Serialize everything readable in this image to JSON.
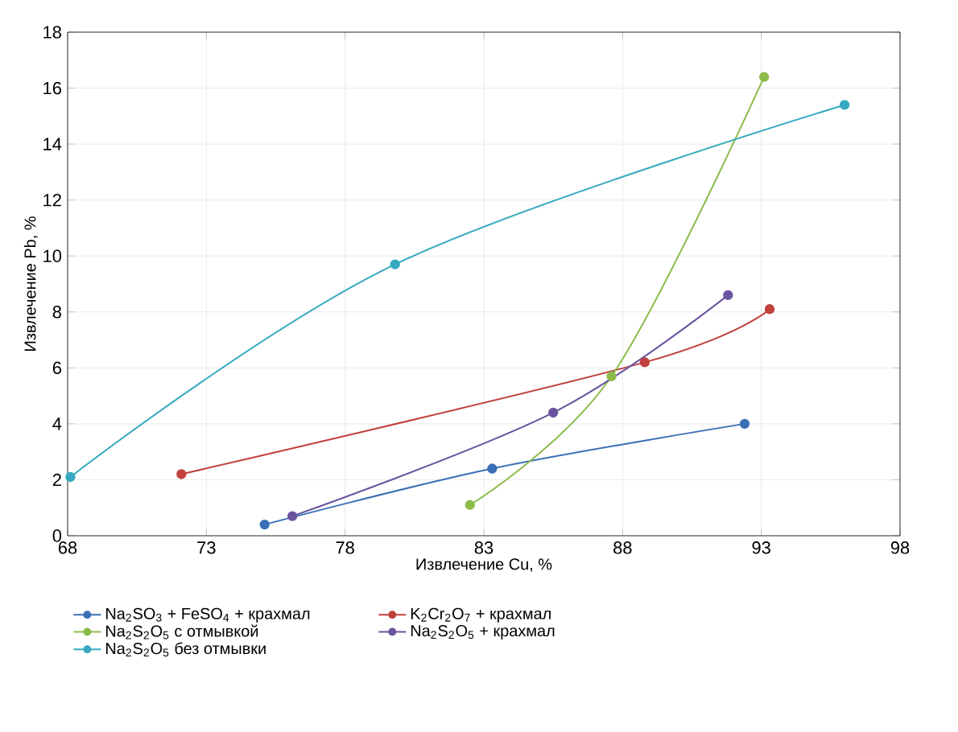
{
  "chart_data": {
    "type": "line",
    "xlabel": "Извлечение Cu, %",
    "ylabel": "Извлечение Pb, %",
    "xlim": [
      68,
      98
    ],
    "xticks": [
      68,
      73,
      78,
      83,
      88,
      93,
      98
    ],
    "ylim": [
      0,
      18
    ],
    "yticks": [
      0,
      2,
      4,
      6,
      8,
      10,
      12,
      14,
      16,
      18
    ],
    "grid": true,
    "legend": "bottom",
    "marker": "circle",
    "series": [
      {
        "name": "Na$_{2}$SO$_{3}$ + FeSO$_{4}$ + крахмал",
        "color": "#3a6fb5",
        "x": [
          75.1,
          83.3,
          92.4
        ],
        "values": [
          0.4,
          2.4,
          4.0
        ]
      },
      {
        "name": "K$_{2}$Cr$_{2}$O$_{7}$ + крахмал",
        "color": "#c0413e",
        "x": [
          72.1,
          88.8,
          93.3
        ],
        "values": [
          2.2,
          6.2,
          8.1
        ]
      },
      {
        "name": "Na$_{2}$S$_{2}$O$_{5}$ с отмывкой",
        "color": "#8cbb4a",
        "x": [
          82.5,
          87.6,
          93.1
        ],
        "values": [
          1.1,
          5.7,
          16.4
        ]
      },
      {
        "name": "Na$_{2}$S$_{2}$O$_{5}$ + крахмал",
        "color": "#6a54a0",
        "x": [
          76.1,
          85.5,
          91.8
        ],
        "values": [
          0.7,
          4.4,
          8.6
        ]
      },
      {
        "name": "Na$_{2}$S$_{2}$O$_{5}$  без отмывки",
        "color": "#35aabf",
        "x": [
          68.1,
          79.8,
          96.0
        ],
        "values": [
          2.1,
          9.7,
          15.4
        ]
      }
    ]
  }
}
